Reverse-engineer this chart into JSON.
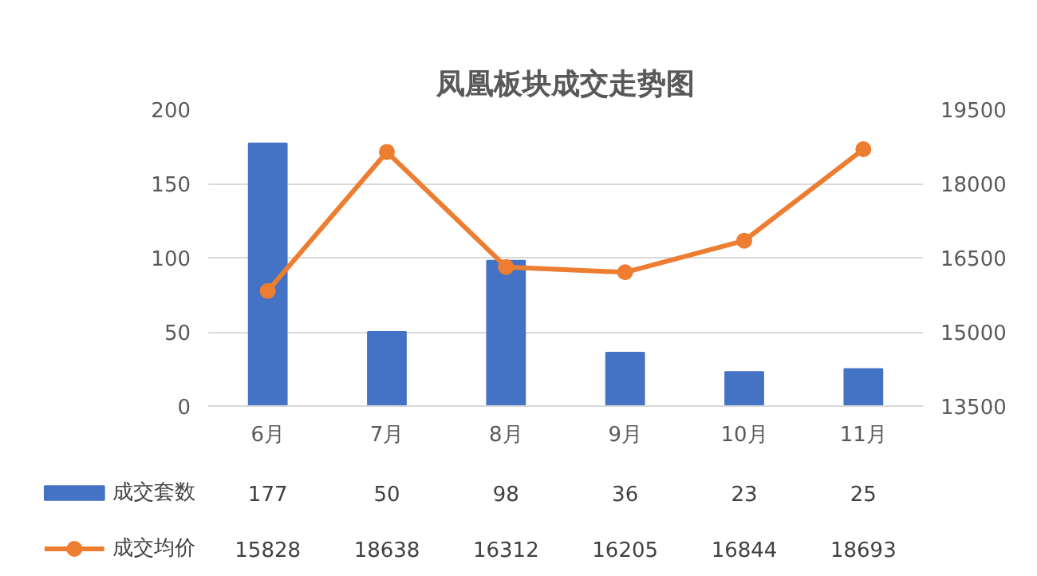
{
  "chart_data": {
    "type": "bar",
    "title": "凤凰板块成交走势图",
    "categories": [
      "6月",
      "7月",
      "8月",
      "9月",
      "10月",
      "11月"
    ],
    "series": [
      {
        "name": "成交套数",
        "color": "#4472c4",
        "values": [
          177,
          50,
          98,
          36,
          23,
          25
        ]
      },
      {
        "name": "成交均价",
        "type": "line",
        "axis": "y2",
        "color": "#ed7d31",
        "marker": "circle",
        "values": [
          15828,
          18638,
          16312,
          16205,
          16844,
          18693
        ]
      }
    ],
    "ylim": [
      0,
      200
    ],
    "yticks": [
      0,
      50,
      100,
      150,
      200
    ],
    "y2lim": [
      13500,
      19500
    ],
    "y2ticks": [
      13500,
      15000,
      16500,
      18000,
      19500
    ],
    "grid": "y",
    "legend": "bottom",
    "data_labels": true
  }
}
